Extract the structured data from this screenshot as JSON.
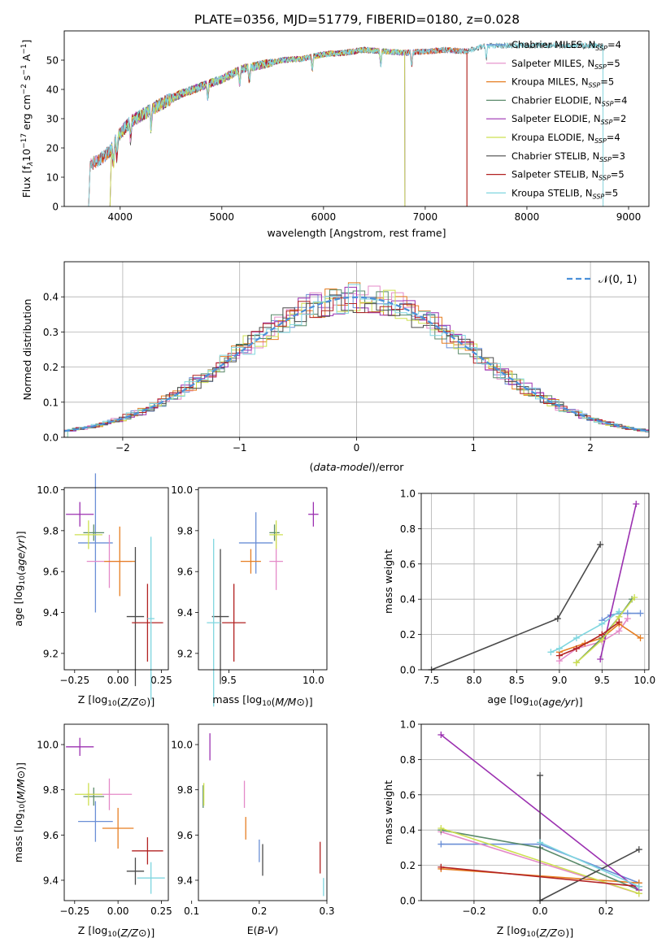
{
  "figure_title": "PLATE=0356, MJD=51779, FIBERID=0180, z=0.028",
  "colors": {
    "Chabrier MILES": "#6a8fd6",
    "Salpeter MILES": "#e48ac8",
    "Kroupa MILES": "#e67e22",
    "Chabrier ELODIE": "#5a8a6a",
    "Salpeter ELODIE": "#9b30b0",
    "Kroupa ELODIE": "#cde050",
    "Chabrier STELIB": "#4a4a4a",
    "Salpeter STELIB": "#b22222",
    "Kroupa STELIB": "#7fd6df",
    "normal_curve": "#4a90d9"
  },
  "chart_data": [
    {
      "id": "spectrum",
      "type": "line",
      "title": "PLATE=0356, MJD=51779, FIBERID=0180, z=0.028",
      "xlabel": "wavelength [Angstrom, rest frame]",
      "ylabel_parts": [
        "Flux [f",
        "λ",
        "10",
        "−17",
        " erg cm",
        "−2",
        " s",
        "−1",
        " A",
        "−1",
        "]"
      ],
      "xlim": [
        3450,
        9200
      ],
      "ylim": [
        0,
        60
      ],
      "xticks": [
        4000,
        5000,
        6000,
        7000,
        8000,
        9000
      ],
      "yticks": [
        0,
        10,
        20,
        30,
        40,
        50
      ],
      "grid": false,
      "legend_position": "top-right",
      "legend": [
        {
          "model": "Chabrier MILES",
          "n": "4"
        },
        {
          "model": "Salpeter MILES",
          "n": "5"
        },
        {
          "model": "Kroupa MILES",
          "n": "5"
        },
        {
          "model": "Chabrier ELODIE",
          "n": "4"
        },
        {
          "model": "Salpeter ELODIE",
          "n": "2"
        },
        {
          "model": "Kroupa ELODIE",
          "n": "4"
        },
        {
          "model": "Chabrier STELIB",
          "n": "3"
        },
        {
          "model": "Salpeter STELIB",
          "n": "5"
        },
        {
          "model": "Kroupa STELIB",
          "n": "5"
        }
      ],
      "continuum": {
        "x": [
          3680,
          3800,
          3900,
          4000,
          4100,
          4200,
          4400,
          4600,
          4800,
          5000,
          5200,
          5400,
          5600,
          5800,
          6000,
          6200,
          6400,
          6600,
          6800,
          7000,
          7200,
          7400,
          7600
        ],
        "y": [
          14,
          16,
          19,
          25,
          29,
          31,
          35,
          38.5,
          41,
          43.5,
          47,
          48.5,
          50,
          50.5,
          52,
          52.5,
          53.5,
          53,
          52.5,
          53,
          53.5,
          53,
          55
        ]
      },
      "model_ranges": {
        "Chabrier MILES": [
          3690,
          7410
        ],
        "Salpeter MILES": [
          3690,
          7410
        ],
        "Kroupa MILES": [
          3690,
          7410
        ],
        "Chabrier ELODIE": [
          3900,
          6800
        ],
        "Salpeter ELODIE": [
          3900,
          6800
        ],
        "Kroupa ELODIE": [
          3900,
          6800
        ],
        "Chabrier STELIB": [
          3690,
          8750
        ],
        "Salpeter STELIB": [
          3690,
          7410
        ],
        "Kroupa STELIB": [
          3690,
          8750
        ]
      }
    },
    {
      "id": "residuals",
      "type": "step",
      "xlabel": "(data-model)/error",
      "ylabel": "Normed distribution",
      "xlim": [
        -2.5,
        2.5
      ],
      "ylim": [
        0,
        0.5
      ],
      "xticks": [
        -2,
        -1,
        0,
        1,
        2
      ],
      "yticks": [
        0.0,
        0.1,
        0.2,
        0.3,
        0.4
      ],
      "grid": true,
      "legend_position": "top-right",
      "legend": "𝒩(0, 1)",
      "bin_width": 0.1
    },
    {
      "id": "age_vs_Z",
      "type": "errorbar",
      "xlabel": "Z [log10(Z/Z⊙)]",
      "ylabel": "age  [log10(age/yr)]",
      "xlim": [
        -0.31,
        0.29
      ],
      "ylim": [
        9.12,
        10.01
      ],
      "xticks": [
        -0.25,
        0.0,
        0.25
      ],
      "yticks": [
        9.2,
        9.4,
        9.6,
        9.8,
        10.0
      ],
      "points": [
        {
          "model": "Chabrier MILES",
          "x": -0.13,
          "y": 9.74,
          "xerr": 0.1,
          "yerr": 0.34
        },
        {
          "model": "Salpeter MILES",
          "x": -0.05,
          "y": 9.65,
          "xerr": 0.13,
          "yerr": 0.13
        },
        {
          "model": "Kroupa MILES",
          "x": 0.01,
          "y": 9.65,
          "xerr": 0.09,
          "yerr": 0.17
        },
        {
          "model": "Chabrier ELODIE",
          "x": -0.14,
          "y": 9.79,
          "xerr": 0.06,
          "yerr": 0.04
        },
        {
          "model": "Salpeter ELODIE",
          "x": -0.22,
          "y": 9.88,
          "xerr": 0.08,
          "yerr": 0.06
        },
        {
          "model": "Kroupa ELODIE",
          "x": -0.17,
          "y": 9.78,
          "xerr": 0.08,
          "yerr": 0.07
        },
        {
          "model": "Chabrier STELIB",
          "x": 0.1,
          "y": 9.38,
          "xerr": 0.05,
          "yerr": 0.34
        },
        {
          "model": "Salpeter STELIB",
          "x": 0.17,
          "y": 9.35,
          "xerr": 0.09,
          "yerr": 0.19
        },
        {
          "model": "Kroupa STELIB",
          "x": 0.19,
          "y": 9.37,
          "xerr": 0.02,
          "yerr": 0.4
        }
      ]
    },
    {
      "id": "age_vs_mass",
      "type": "errorbar",
      "xlabel": "mass [log10(M/M⊙)]",
      "ylabel": "",
      "xlim": [
        9.32,
        10.08
      ],
      "ylim": [
        9.12,
        10.01
      ],
      "xticks": [
        9.5,
        10.0
      ],
      "yticks": [
        9.2,
        9.4,
        9.6,
        9.8,
        10.0
      ],
      "points": [
        {
          "model": "Chabrier MILES",
          "x": 9.66,
          "y": 9.74,
          "xerr": 0.1,
          "yerr": 0.15
        },
        {
          "model": "Salpeter MILES",
          "x": 9.78,
          "y": 9.65,
          "xerr": 0.04,
          "yerr": 0.14
        },
        {
          "model": "Kroupa MILES",
          "x": 9.63,
          "y": 9.65,
          "xerr": 0.06,
          "yerr": 0.06
        },
        {
          "model": "Chabrier ELODIE",
          "x": 9.77,
          "y": 9.79,
          "xerr": 0.03,
          "yerr": 0.04
        },
        {
          "model": "Salpeter ELODIE",
          "x": 10.0,
          "y": 9.88,
          "xerr": 0.03,
          "yerr": 0.06
        },
        {
          "model": "Kroupa ELODIE",
          "x": 9.78,
          "y": 9.78,
          "xerr": 0.04,
          "yerr": 0.07
        },
        {
          "model": "Chabrier STELIB",
          "x": 9.45,
          "y": 9.38,
          "xerr": 0.05,
          "yerr": 0.33
        },
        {
          "model": "Salpeter STELIB",
          "x": 9.53,
          "y": 9.35,
          "xerr": 0.07,
          "yerr": 0.19
        },
        {
          "model": "Kroupa STELIB",
          "x": 9.41,
          "y": 9.35,
          "xerr": 0.04,
          "yerr": 0.41
        }
      ]
    },
    {
      "id": "mass_weight_vs_age",
      "type": "line",
      "xlabel": "age  [log10(age/yr)]",
      "ylabel": "mass weight",
      "xlim": [
        7.38,
        10.05
      ],
      "ylim": [
        0,
        1.0
      ],
      "xticks": [
        7.5,
        8.0,
        8.5,
        9.0,
        9.5,
        10.0
      ],
      "yticks": [
        0.0,
        0.2,
        0.4,
        0.6,
        0.8,
        1.0
      ],
      "grid": true,
      "series": [
        {
          "model": "Chabrier MILES",
          "x": [
            9.5,
            9.6,
            9.7,
            9.8,
            9.95
          ],
          "y": [
            0.28,
            0.31,
            0.32,
            0.32,
            0.32
          ]
        },
        {
          "model": "Salpeter MILES",
          "x": [
            9.0,
            9.2,
            9.5,
            9.7,
            9.8
          ],
          "y": [
            0.05,
            0.12,
            0.16,
            0.22,
            0.29
          ]
        },
        {
          "model": "Kroupa MILES",
          "x": [
            9.0,
            9.3,
            9.5,
            9.7,
            9.95
          ],
          "y": [
            0.1,
            0.15,
            0.18,
            0.26,
            0.18
          ]
        },
        {
          "model": "Chabrier ELODIE",
          "x": [
            9.2,
            9.5,
            9.7,
            9.85
          ],
          "y": [
            0.04,
            0.18,
            0.3,
            0.4
          ]
        },
        {
          "model": "Salpeter ELODIE",
          "x": [
            9.48,
            9.9
          ],
          "y": [
            0.06,
            0.94
          ]
        },
        {
          "model": "Kroupa ELODIE",
          "x": [
            9.2,
            9.5,
            9.7,
            9.88
          ],
          "y": [
            0.04,
            0.17,
            0.3,
            0.41
          ]
        },
        {
          "model": "Chabrier STELIB",
          "x": [
            7.5,
            8.98,
            9.48
          ],
          "y": [
            0.0,
            0.29,
            0.71
          ]
        },
        {
          "model": "Salpeter STELIB",
          "x": [
            9.0,
            9.2,
            9.5,
            9.7
          ],
          "y": [
            0.08,
            0.12,
            0.2,
            0.27
          ]
        },
        {
          "model": "Kroupa STELIB",
          "x": [
            8.9,
            9.0,
            9.2,
            9.5,
            9.7
          ],
          "y": [
            0.1,
            0.12,
            0.18,
            0.26,
            0.33
          ]
        }
      ]
    },
    {
      "id": "mass_vs_Z",
      "type": "errorbar",
      "xlabel": "Z [log10(Z/Z⊙)]",
      "ylabel": "mass [log10(M/M⊙)]",
      "xlim": [
        -0.31,
        0.29
      ],
      "ylim": [
        9.31,
        10.09
      ],
      "xticks": [
        -0.25,
        0.0,
        0.25
      ],
      "yticks": [
        9.4,
        9.6,
        9.8,
        10.0
      ],
      "points": [
        {
          "model": "Chabrier MILES",
          "x": -0.13,
          "y": 9.66,
          "xerr": 0.1,
          "yerr": 0.09
        },
        {
          "model": "Salpeter MILES",
          "x": -0.05,
          "y": 9.78,
          "xerr": 0.13,
          "yerr": 0.07
        },
        {
          "model": "Kroupa MILES",
          "x": 0.0,
          "y": 9.63,
          "xerr": 0.09,
          "yerr": 0.09
        },
        {
          "model": "Chabrier ELODIE",
          "x": -0.14,
          "y": 9.77,
          "xerr": 0.06,
          "yerr": 0.04
        },
        {
          "model": "Salpeter ELODIE",
          "x": -0.22,
          "y": 9.99,
          "xerr": 0.08,
          "yerr": 0.04
        },
        {
          "model": "Kroupa ELODIE",
          "x": -0.17,
          "y": 9.78,
          "xerr": 0.08,
          "yerr": 0.05
        },
        {
          "model": "Chabrier STELIB",
          "x": 0.1,
          "y": 9.44,
          "xerr": 0.05,
          "yerr": 0.06
        },
        {
          "model": "Salpeter STELIB",
          "x": 0.17,
          "y": 9.53,
          "xerr": 0.09,
          "yerr": 0.06
        },
        {
          "model": "Kroupa STELIB",
          "x": 0.19,
          "y": 9.41,
          "xerr": 0.08,
          "yerr": 0.07
        }
      ]
    },
    {
      "id": "mass_vs_ebv",
      "type": "errorbar",
      "xlabel": "E(B-V)",
      "ylabel": "",
      "xlim": [
        0.11,
        0.3
      ],
      "ylim": [
        9.31,
        10.09
      ],
      "xticks": [
        0.1,
        0.2,
        0.3
      ],
      "yticks": [
        9.4,
        9.6,
        9.8,
        10.0
      ],
      "points": [
        {
          "model": "Chabrier MILES",
          "x": 0.2,
          "y": 9.53,
          "xerr": 0,
          "yerr": 0.05
        },
        {
          "model": "Salpeter MILES",
          "x": 0.178,
          "y": 9.78,
          "xerr": 0,
          "yerr": 0.06
        },
        {
          "model": "Kroupa MILES",
          "x": 0.18,
          "y": 9.63,
          "xerr": 0,
          "yerr": 0.05
        },
        {
          "model": "Chabrier ELODIE",
          "x": 0.117,
          "y": 9.77,
          "xerr": 0,
          "yerr": 0.05
        },
        {
          "model": "Salpeter ELODIE",
          "x": 0.127,
          "y": 9.99,
          "xerr": 0,
          "yerr": 0.06
        },
        {
          "model": "Kroupa ELODIE",
          "x": 0.118,
          "y": 9.78,
          "xerr": 0,
          "yerr": 0.05
        },
        {
          "model": "Chabrier STELIB",
          "x": 0.205,
          "y": 9.49,
          "xerr": 0,
          "yerr": 0.07
        },
        {
          "model": "Salpeter STELIB",
          "x": 0.29,
          "y": 9.5,
          "xerr": 0,
          "yerr": 0.07
        },
        {
          "model": "Kroupa STELIB",
          "x": 0.295,
          "y": 9.37,
          "xerr": 0,
          "yerr": 0.04
        }
      ]
    },
    {
      "id": "mass_weight_vs_Z",
      "type": "line",
      "xlabel": "Z [log10(Z/Z⊙)]",
      "ylabel": "mass weight",
      "xlim": [
        -0.36,
        0.33
      ],
      "ylim": [
        0,
        1.0
      ],
      "xticks": [
        -0.2,
        0.0,
        0.2
      ],
      "yticks": [
        0.0,
        0.2,
        0.4,
        0.6,
        0.8,
        1.0
      ],
      "grid": true,
      "series": [
        {
          "model": "Chabrier MILES",
          "x": [
            -0.3,
            0.0,
            0.3
          ],
          "y": [
            0.32,
            0.32,
            0.1
          ]
        },
        {
          "model": "Salpeter MILES",
          "x": [
            -0.3,
            0.3
          ],
          "y": [
            0.39,
            0.04
          ]
        },
        {
          "model": "Kroupa MILES",
          "x": [
            -0.3,
            0.3
          ],
          "y": [
            0.18,
            0.1
          ]
        },
        {
          "model": "Chabrier ELODIE",
          "x": [
            -0.3,
            0.0,
            0.3
          ],
          "y": [
            0.4,
            0.3,
            0.06
          ]
        },
        {
          "model": "Salpeter ELODIE",
          "x": [
            -0.3,
            0.3
          ],
          "y": [
            0.94,
            0.06
          ]
        },
        {
          "model": "Kroupa ELODIE",
          "x": [
            -0.3,
            0.3
          ],
          "y": [
            0.41,
            0.04
          ]
        },
        {
          "model": "Chabrier STELIB",
          "x": [
            0.0,
            0.0,
            0.3
          ],
          "y": [
            0.71,
            0.0,
            0.29
          ]
        },
        {
          "model": "Salpeter STELIB",
          "x": [
            -0.3,
            0.3
          ],
          "y": [
            0.19,
            0.08
          ]
        },
        {
          "model": "Kroupa STELIB",
          "x": [
            0.0,
            0.3
          ],
          "y": [
            0.33,
            0.08
          ]
        }
      ]
    }
  ]
}
